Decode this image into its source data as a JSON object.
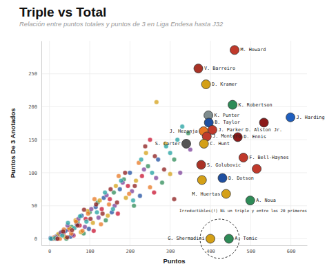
{
  "chart_data": {
    "type": "scatter",
    "title": "Triple vs Total",
    "subtitle": "Relación entre puntos totales y puntos de 3 en Liga Endesa hasta J32",
    "x_label": "Puntos",
    "y_label": "Puntos De 3 Anotados",
    "xlim": [
      -20,
      640
    ],
    "ylim": [
      -10,
      300
    ],
    "xticks": [
      0,
      100,
      200,
      300,
      400,
      500,
      600
    ],
    "yticks": [
      0,
      50,
      100,
      150,
      200,
      250
    ],
    "grid": true,
    "annotation": "Irreductibles(!) Ni un triple y entre los 20 primeros",
    "series": [
      {
        "color": "#c8102e",
        "marker": "circle",
        "x": [
          5,
          12,
          20,
          35,
          48,
          60,
          75,
          90,
          110,
          130,
          150,
          170,
          195,
          230,
          260,
          250
        ],
        "values": [
          0,
          2,
          0,
          8,
          14,
          5,
          20,
          30,
          12,
          45,
          60,
          38,
          80,
          95,
          70,
          150
        ]
      },
      {
        "color": "#2e8b57",
        "marker": "circle",
        "x": [
          8,
          18,
          30,
          42,
          55,
          70,
          85,
          100,
          120,
          140,
          160,
          185,
          210,
          245,
          280,
          345,
          310
        ],
        "values": [
          0,
          4,
          10,
          0,
          18,
          25,
          8,
          40,
          55,
          28,
          70,
          90,
          50,
          110,
          85,
          160,
          120
        ]
      },
      {
        "color": "#1f4fa0",
        "marker": "circle",
        "x": [
          3,
          15,
          25,
          40,
          52,
          68,
          80,
          98,
          115,
          135,
          155,
          175,
          200,
          225,
          270
        ],
        "values": [
          1,
          0,
          6,
          12,
          3,
          22,
          35,
          15,
          48,
          62,
          40,
          75,
          100,
          65,
          120
        ]
      },
      {
        "color": "#d4a017",
        "marker": "circle",
        "x": [
          10,
          22,
          38,
          50,
          65,
          78,
          95,
          108,
          125,
          145,
          165,
          190,
          215,
          240,
          300,
          266,
          288
        ],
        "values": [
          0,
          7,
          3,
          16,
          28,
          10,
          42,
          24,
          58,
          35,
          80,
          62,
          88,
          130,
          98,
          207,
          144
        ]
      },
      {
        "color": "#7b3f98",
        "marker": "circle",
        "x": [
          6,
          16,
          28,
          45,
          58,
          72,
          88,
          104,
          122,
          142,
          162,
          182,
          205,
          235,
          265,
          350,
          325
        ],
        "values": [
          0,
          3,
          9,
          20,
          6,
          30,
          18,
          45,
          32,
          66,
          50,
          85,
          72,
          105,
          92,
          135,
          100
        ]
      },
      {
        "color": "#e87722",
        "marker": "circle",
        "x": [
          12,
          26,
          36,
          54,
          66,
          82,
          96,
          112,
          128,
          148,
          172,
          198,
          222,
          250
        ],
        "values": [
          2,
          0,
          14,
          8,
          26,
          12,
          38,
          60,
          22,
          52,
          95,
          68,
          115,
          78
        ]
      },
      {
        "color": "#20a0a0",
        "marker": "circle",
        "x": [
          4,
          14,
          32,
          46,
          62,
          76,
          92,
          118,
          138,
          158,
          178,
          208,
          228,
          255,
          290,
          330,
          318,
          300
        ],
        "values": [
          0,
          1,
          5,
          24,
          16,
          34,
          26,
          40,
          70,
          45,
          88,
          58,
          120,
          100,
          140,
          170,
          150,
          130
        ]
      },
      {
        "color": "#8b1a1a",
        "marker": "circle",
        "x": [
          20,
          34,
          44,
          56,
          70,
          86,
          102,
          116,
          132,
          152,
          168,
          188,
          212,
          238,
          262,
          285,
          310
        ],
        "values": [
          0,
          11,
          2,
          13,
          20,
          44,
          30,
          52,
          38,
          75,
          55,
          100,
          80,
          140,
          125,
          105,
          60
        ]
      },
      {
        "marker": "large-circle",
        "x": [
          460,
          370,
          389,
          455,
          395,
          396,
          533,
          599,
          405,
          383,
          468,
          391,
          384,
          340,
          482,
          377,
          379,
          515,
          430,
          439,
          499,
          400,
          446
        ],
        "values": [
          286,
          258,
          234,
          203,
          187,
          176,
          176,
          184,
          165,
          163,
          154,
          155,
          144,
          144,
          123,
          112,
          89,
          106,
          92,
          68,
          58,
          0,
          0
        ],
        "point_labels": [
          "M. Howard",
          "V. Barreiro",
          "D. Kramer",
          "K. Robertson",
          "K. Punter",
          "B. Taylor",
          "D. Alston Jr.",
          "J. Harding",
          "J. Parker",
          "J. Hezonja",
          "D. Ennis",
          "J. Montero",
          "C. Hunt",
          "S. Carter",
          "F. Bell-Haynes",
          "S. Golubovic",
          null,
          null,
          "D. Dotson",
          "M. Huertas",
          "A. Noua",
          "G. Shermadini",
          "A. Tomic"
        ],
        "colors": [
          "#c0392b",
          "#a93226",
          "#d4a017",
          "#2e8b57",
          "#7f8c8d",
          "#1f4fa0",
          "#8b1a1a",
          "#1f5fbf",
          "#c0392b",
          "#e87722",
          "#8b1a1a",
          "#c0392b",
          "#d4a017",
          "#555555",
          "#c0392b",
          "#a93226",
          "#d4a017",
          "#c0392b",
          "#1f4fa0",
          "#d4a017",
          "#2e8b57",
          "#d4a017",
          "#2e8b57"
        ]
      }
    ]
  }
}
